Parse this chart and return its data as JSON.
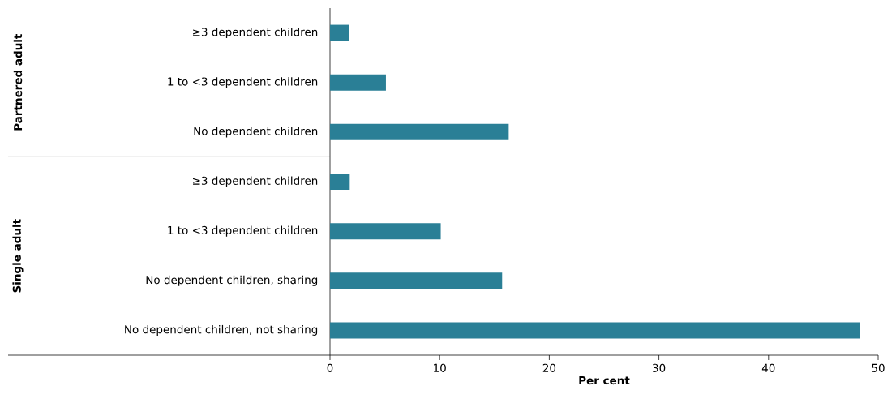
{
  "chart_data": {
    "type": "bar",
    "orientation": "horizontal",
    "categories": [
      "≥3 dependent children",
      "1 to <3 dependent children",
      "No dependent children",
      "≥3 dependent children",
      "1 to <3 dependent children",
      "No dependent children, sharing",
      "No dependent children, not sharing"
    ],
    "values": [
      1.7,
      5.1,
      16.3,
      1.8,
      10.1,
      15.7,
      48.3
    ],
    "color": "#2a7f96",
    "xlim": [
      0,
      50
    ],
    "xticks": [
      0,
      10,
      20,
      30,
      40,
      50
    ],
    "xlabel": "Per cent",
    "annotations": [
      "Partnered adult",
      "Single adult"
    ],
    "grid": false
  }
}
